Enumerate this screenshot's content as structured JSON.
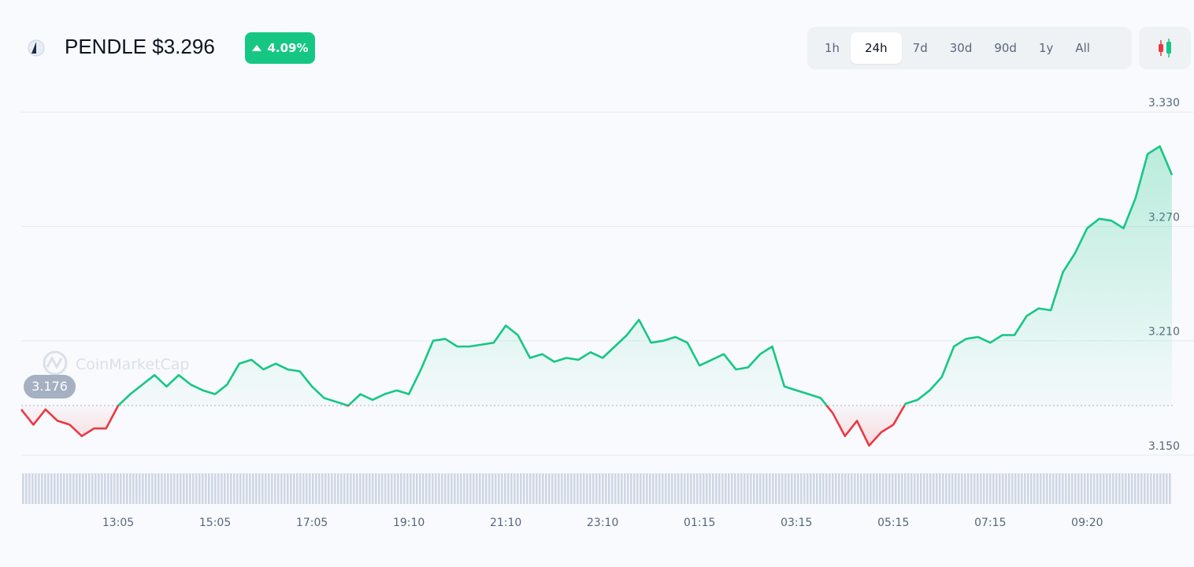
{
  "header": {
    "title": "PENDLE $3.296",
    "change": "4.09%"
  },
  "time_ranges": {
    "options": [
      "1h",
      "24h",
      "7d",
      "30d",
      "90d",
      "1y",
      "All"
    ],
    "selected_index": 1
  },
  "watermark": "CoinMarketCap",
  "chart_data": {
    "type": "line",
    "categories": [
      null,
      null,
      null,
      null,
      null,
      null,
      null,
      null,
      "13:05",
      null,
      null,
      null,
      null,
      null,
      null,
      null,
      "15:05",
      null,
      null,
      null,
      null,
      null,
      null,
      null,
      "17:05",
      null,
      null,
      null,
      null,
      null,
      null,
      null,
      "19:10",
      null,
      null,
      null,
      null,
      null,
      null,
      null,
      "21:10",
      null,
      null,
      null,
      null,
      null,
      null,
      null,
      "23:10",
      null,
      null,
      null,
      null,
      null,
      null,
      null,
      "01:15",
      null,
      null,
      null,
      null,
      null,
      null,
      null,
      "03:15",
      null,
      null,
      null,
      null,
      null,
      null,
      null,
      "05:15",
      null,
      null,
      null,
      null,
      null,
      null,
      null,
      "07:15",
      null,
      null,
      null,
      null,
      null,
      null,
      null,
      "09:20",
      null,
      null,
      null,
      null,
      null,
      null,
      null
    ],
    "series": [
      {
        "color": "#16c784",
        "down_color": "#ea3943",
        "values": [
          3.174,
          3.166,
          3.174,
          3.168,
          3.166,
          3.16,
          3.164,
          3.164,
          3.176,
          3.182,
          3.187,
          3.192,
          3.186,
          3.192,
          3.187,
          3.184,
          3.182,
          3.187,
          3.198,
          3.2,
          3.195,
          3.198,
          3.195,
          3.194,
          3.186,
          3.18,
          3.178,
          3.176,
          3.182,
          3.179,
          3.182,
          3.184,
          3.182,
          3.195,
          3.21,
          3.211,
          3.207,
          3.207,
          3.208,
          3.209,
          3.218,
          3.213,
          3.201,
          3.203,
          3.199,
          3.201,
          3.2,
          3.204,
          3.201,
          3.207,
          3.213,
          3.221,
          3.209,
          3.21,
          3.212,
          3.209,
          3.197,
          3.2,
          3.203,
          3.195,
          3.196,
          3.203,
          3.207,
          3.186,
          3.184,
          3.182,
          3.18,
          3.172,
          3.16,
          3.168,
          3.155,
          3.162,
          3.166,
          3.177,
          3.179,
          3.184,
          3.191,
          3.207,
          3.211,
          3.212,
          3.209,
          3.213,
          3.213,
          3.223,
          3.227,
          3.226,
          3.246,
          3.256,
          3.269,
          3.274,
          3.273,
          3.269,
          3.285,
          3.308,
          3.312,
          3.297
        ]
      }
    ],
    "baseline": 3.176,
    "ylim": [
      3.15,
      3.34
    ],
    "yticks": [
      {
        "value": 3.15,
        "label": "3.150"
      },
      {
        "value": 3.21,
        "label": "3.210"
      },
      {
        "value": 3.27,
        "label": "3.270"
      },
      {
        "value": 3.33,
        "label": "3.330"
      }
    ],
    "grid": true
  }
}
